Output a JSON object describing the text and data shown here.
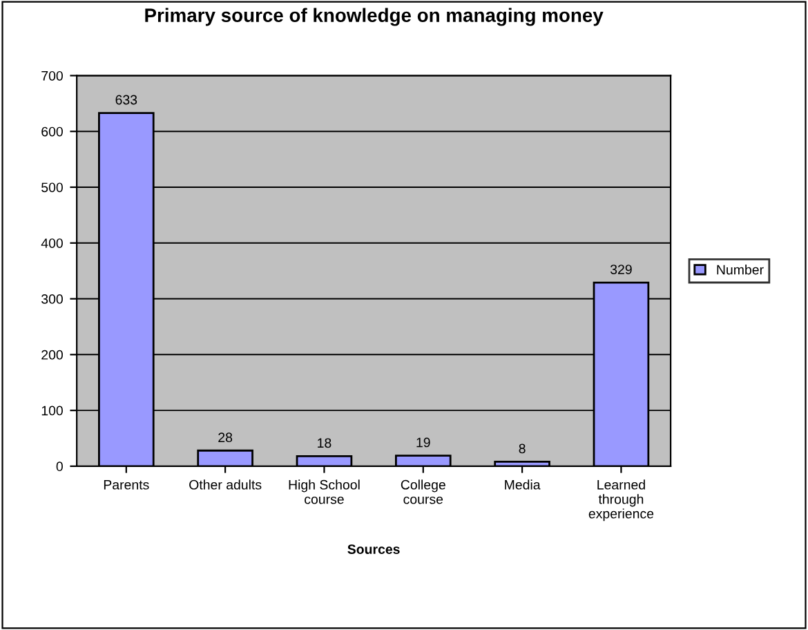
{
  "chart_data": {
    "type": "bar",
    "title": "Primary source of knowledge on managing money",
    "xlabel": "Sources",
    "categories": [
      "Parents",
      "Other adults",
      "High School\ncourse",
      "College\ncourse",
      "Media",
      "Learned\nthrough\nexperience"
    ],
    "series": [
      {
        "name": "Number",
        "color": "#9999ff",
        "values": [
          633,
          28,
          18,
          19,
          8,
          329
        ]
      }
    ],
    "ylim": [
      0,
      700
    ],
    "yticks": [
      0,
      100,
      200,
      300,
      400,
      500,
      600,
      700
    ],
    "grid": "y",
    "legend": "right",
    "data_labels": true
  }
}
